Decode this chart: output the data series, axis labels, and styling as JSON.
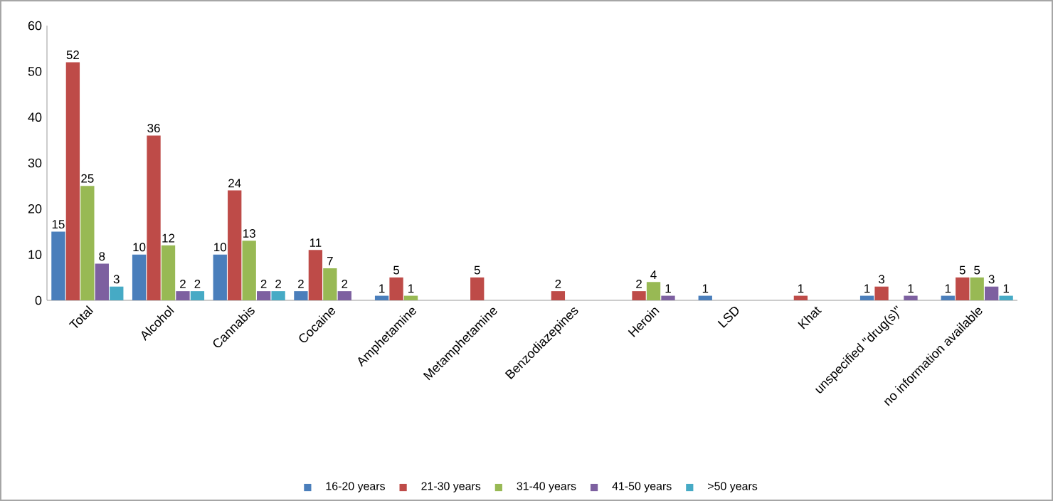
{
  "chart_data": {
    "type": "bar",
    "categories": [
      "Total",
      "Alcohol",
      "Cannabis",
      "Cocaine",
      "Amphetamine",
      "Metamphetamine",
      "Benzodiazepines",
      "Heroin",
      "LSD",
      "Khat",
      "unspecified \"drug(s)\"",
      "no information available"
    ],
    "series": [
      {
        "name": "16-20 years",
        "color": "#4a7ebb",
        "values": [
          15,
          10,
          10,
          2,
          1,
          null,
          null,
          null,
          1,
          null,
          1,
          1
        ]
      },
      {
        "name": "21-30 years",
        "color": "#be4b48",
        "values": [
          52,
          36,
          24,
          11,
          5,
          5,
          2,
          2,
          null,
          1,
          3,
          5
        ]
      },
      {
        "name": "31-40 years",
        "color": "#98b954",
        "values": [
          25,
          12,
          13,
          7,
          1,
          null,
          null,
          4,
          null,
          null,
          null,
          5
        ]
      },
      {
        "name": "41-50 years",
        "color": "#7d60a0",
        "values": [
          8,
          2,
          2,
          2,
          null,
          null,
          null,
          1,
          null,
          null,
          1,
          3
        ]
      },
      {
        "name": ">50 years",
        "color": "#46aac5",
        "values": [
          3,
          2,
          2,
          null,
          null,
          null,
          null,
          null,
          null,
          null,
          null,
          1
        ]
      }
    ],
    "ylim": [
      0,
      60
    ],
    "yticks": [
      0,
      10,
      20,
      30,
      40,
      50,
      60
    ],
    "data_labels": true,
    "grid": false,
    "legend": "bottom"
  }
}
